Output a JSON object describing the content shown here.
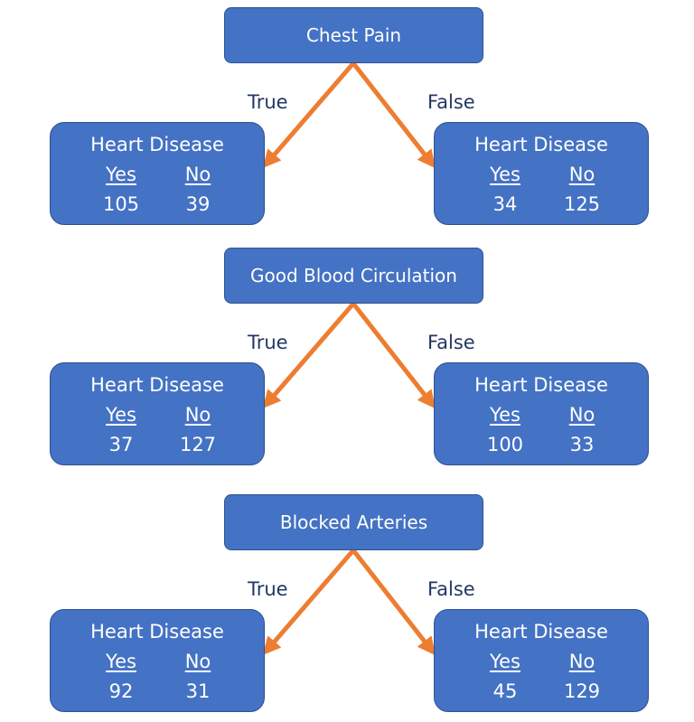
{
  "colors": {
    "box_fill": "#4472c4",
    "box_border": "#2f528f",
    "arrow": "#ed7d31",
    "branch_label": "#203864",
    "box_text": "#ffffff"
  },
  "trees": [
    {
      "root": "Chest Pain",
      "true_label": "True",
      "false_label": "False",
      "left": {
        "title": "Heart Disease",
        "yes_label": "Yes",
        "no_label": "No",
        "yes": "105",
        "no": "39"
      },
      "right": {
        "title": "Heart Disease",
        "yes_label": "Yes",
        "no_label": "No",
        "yes": "34",
        "no": "125"
      }
    },
    {
      "root": "Good Blood Circulation",
      "true_label": "True",
      "false_label": "False",
      "left": {
        "title": "Heart Disease",
        "yes_label": "Yes",
        "no_label": "No",
        "yes": "37",
        "no": "127"
      },
      "right": {
        "title": "Heart Disease",
        "yes_label": "Yes",
        "no_label": "No",
        "yes": "100",
        "no": "33"
      }
    },
    {
      "root": "Blocked Arteries",
      "true_label": "True",
      "false_label": "False",
      "left": {
        "title": "Heart Disease",
        "yes_label": "Yes",
        "no_label": "No",
        "yes": "92",
        "no": "31"
      },
      "right": {
        "title": "Heart Disease",
        "yes_label": "Yes",
        "no_label": "No",
        "yes": "45",
        "no": "129"
      }
    }
  ]
}
